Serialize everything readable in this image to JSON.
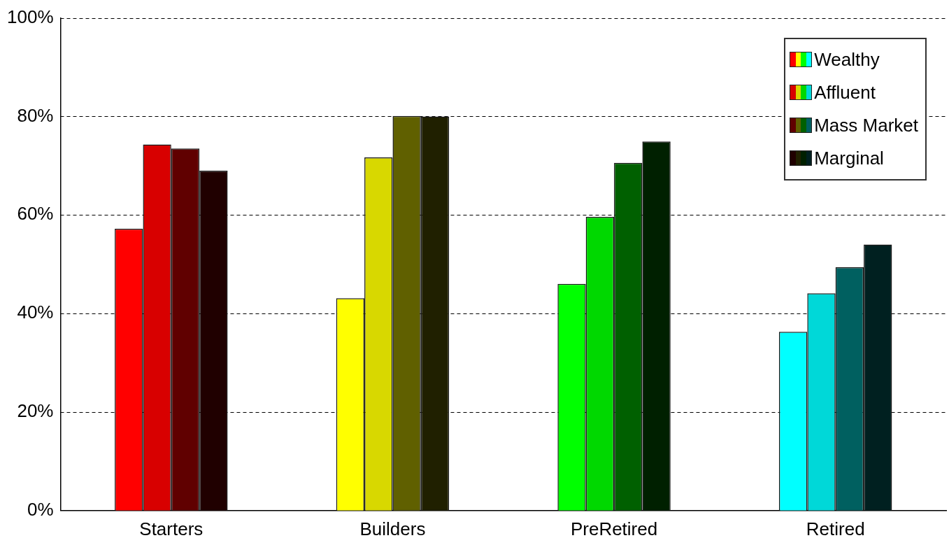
{
  "chart_data": {
    "type": "bar",
    "categories": [
      "Starters",
      "Builders",
      "PreRetired",
      "Retired"
    ],
    "series": [
      {
        "name": "Wealthy",
        "colors": [
          "#ff0000",
          "#ffff00",
          "#00ff00",
          "#00ffff"
        ],
        "values": [
          57.2,
          43.1,
          46.0,
          36.3
        ]
      },
      {
        "name": "Affluent",
        "colors": [
          "#d80000",
          "#d8d800",
          "#00d800",
          "#00d8d8"
        ],
        "values": [
          74.3,
          71.7,
          59.6,
          44.1
        ]
      },
      {
        "name": "Mass Market",
        "colors": [
          "#600000",
          "#606000",
          "#006000",
          "#006060"
        ],
        "values": [
          73.5,
          80.1,
          70.6,
          49.4
        ]
      },
      {
        "name": "Marginal",
        "colors": [
          "#200000",
          "#202000",
          "#002000",
          "#002020"
        ],
        "values": [
          69.0,
          80.0,
          74.9,
          54.0
        ]
      }
    ],
    "ylim": [
      0,
      100
    ],
    "yticks": [
      {
        "value": 0,
        "label": "0%"
      },
      {
        "value": 20,
        "label": "20%"
      },
      {
        "value": 40,
        "label": "40%"
      },
      {
        "value": 60,
        "label": "60%"
      },
      {
        "value": 80,
        "label": "80%"
      },
      {
        "value": 100,
        "label": "100%"
      }
    ],
    "grid": "y",
    "legend": "top right"
  }
}
